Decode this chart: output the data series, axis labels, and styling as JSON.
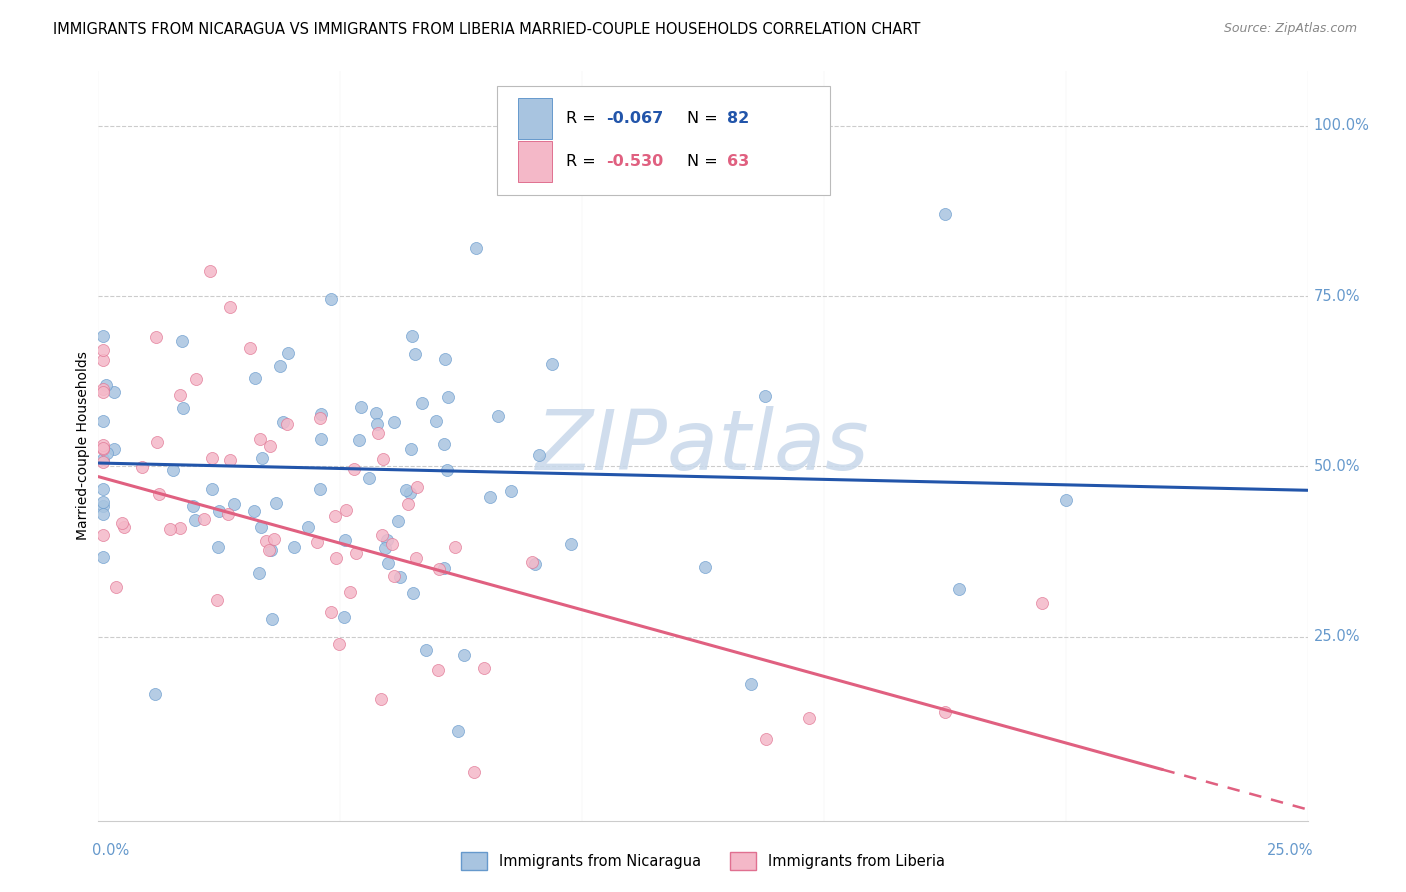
{
  "title": "IMMIGRANTS FROM NICARAGUA VS IMMIGRANTS FROM LIBERIA MARRIED-COUPLE HOUSEHOLDS CORRELATION CHART",
  "source": "Source: ZipAtlas.com",
  "ylabel": "Married-couple Households",
  "xlim": [
    0.0,
    0.25
  ],
  "ylim": [
    -0.02,
    1.08
  ],
  "nicaragua_color": "#a8c4e0",
  "nicaragua_edge": "#6699cc",
  "liberia_color": "#f4b8c8",
  "liberia_edge": "#e07090",
  "nicaragua_line_color": "#2255aa",
  "liberia_line_color": "#e06080",
  "R_nicaragua": -0.067,
  "N_nicaragua": 82,
  "R_liberia": -0.53,
  "N_liberia": 63,
  "watermark": "ZIPatlas",
  "watermark_color": "#c8d8ea",
  "background_color": "#ffffff",
  "grid_color": "#cccccc",
  "right_label_color": "#6699cc",
  "title_fontsize": 10.5,
  "right_labels": [
    [
      "100.0%",
      1.0
    ],
    [
      "75.0%",
      0.75
    ],
    [
      "50.0%",
      0.5
    ],
    [
      "25.0%",
      0.25
    ]
  ],
  "ytick_positions": [
    0.25,
    0.5,
    0.75,
    1.0
  ],
  "xtick_positions": [
    0.0,
    0.05,
    0.1,
    0.15,
    0.2,
    0.25
  ]
}
